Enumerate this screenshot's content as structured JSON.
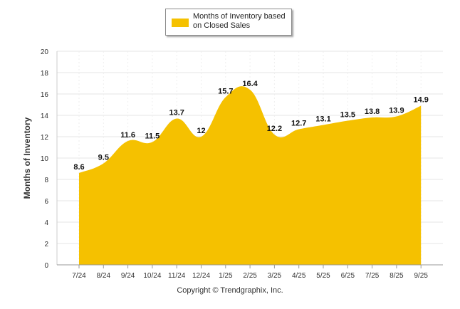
{
  "chart_data": {
    "type": "area",
    "categories": [
      "7/24",
      "8/24",
      "9/24",
      "10/24",
      "11/24",
      "12/24",
      "1/25",
      "2/25",
      "3/25",
      "4/25",
      "5/25",
      "6/25",
      "7/25",
      "8/25",
      "9/25"
    ],
    "series": [
      {
        "name": "Months of Inventory based on Closed Sales",
        "values": [
          8.6,
          9.5,
          11.6,
          11.5,
          13.7,
          12,
          15.7,
          16.4,
          12.2,
          12.7,
          13.1,
          13.5,
          13.8,
          13.9,
          14.9
        ],
        "labels": [
          "8.6",
          "9.5",
          "11.6",
          "11.5",
          "13.7",
          "12",
          "15.7",
          "16.4",
          "12.2",
          "12.7",
          "13.1",
          "13.5",
          "13.8",
          "13.9",
          "14.9"
        ],
        "color": "#f5c100"
      }
    ],
    "ylabel": "Months of Inventory",
    "xlabel": "",
    "ylim": [
      0,
      20
    ],
    "yticks": [
      "0",
      "2",
      "4",
      "6",
      "8",
      "10",
      "12",
      "14",
      "16",
      "18",
      "20"
    ],
    "grid": true,
    "legend_position": "top-center"
  },
  "legend": {
    "label": "Months of Inventory based on Closed Sales"
  },
  "footer": {
    "copyright": "Copyright © Trendgraphix, Inc."
  },
  "colors": {
    "area": "#f5c100",
    "grid": "#e6e6e6",
    "axis": "#555555"
  }
}
